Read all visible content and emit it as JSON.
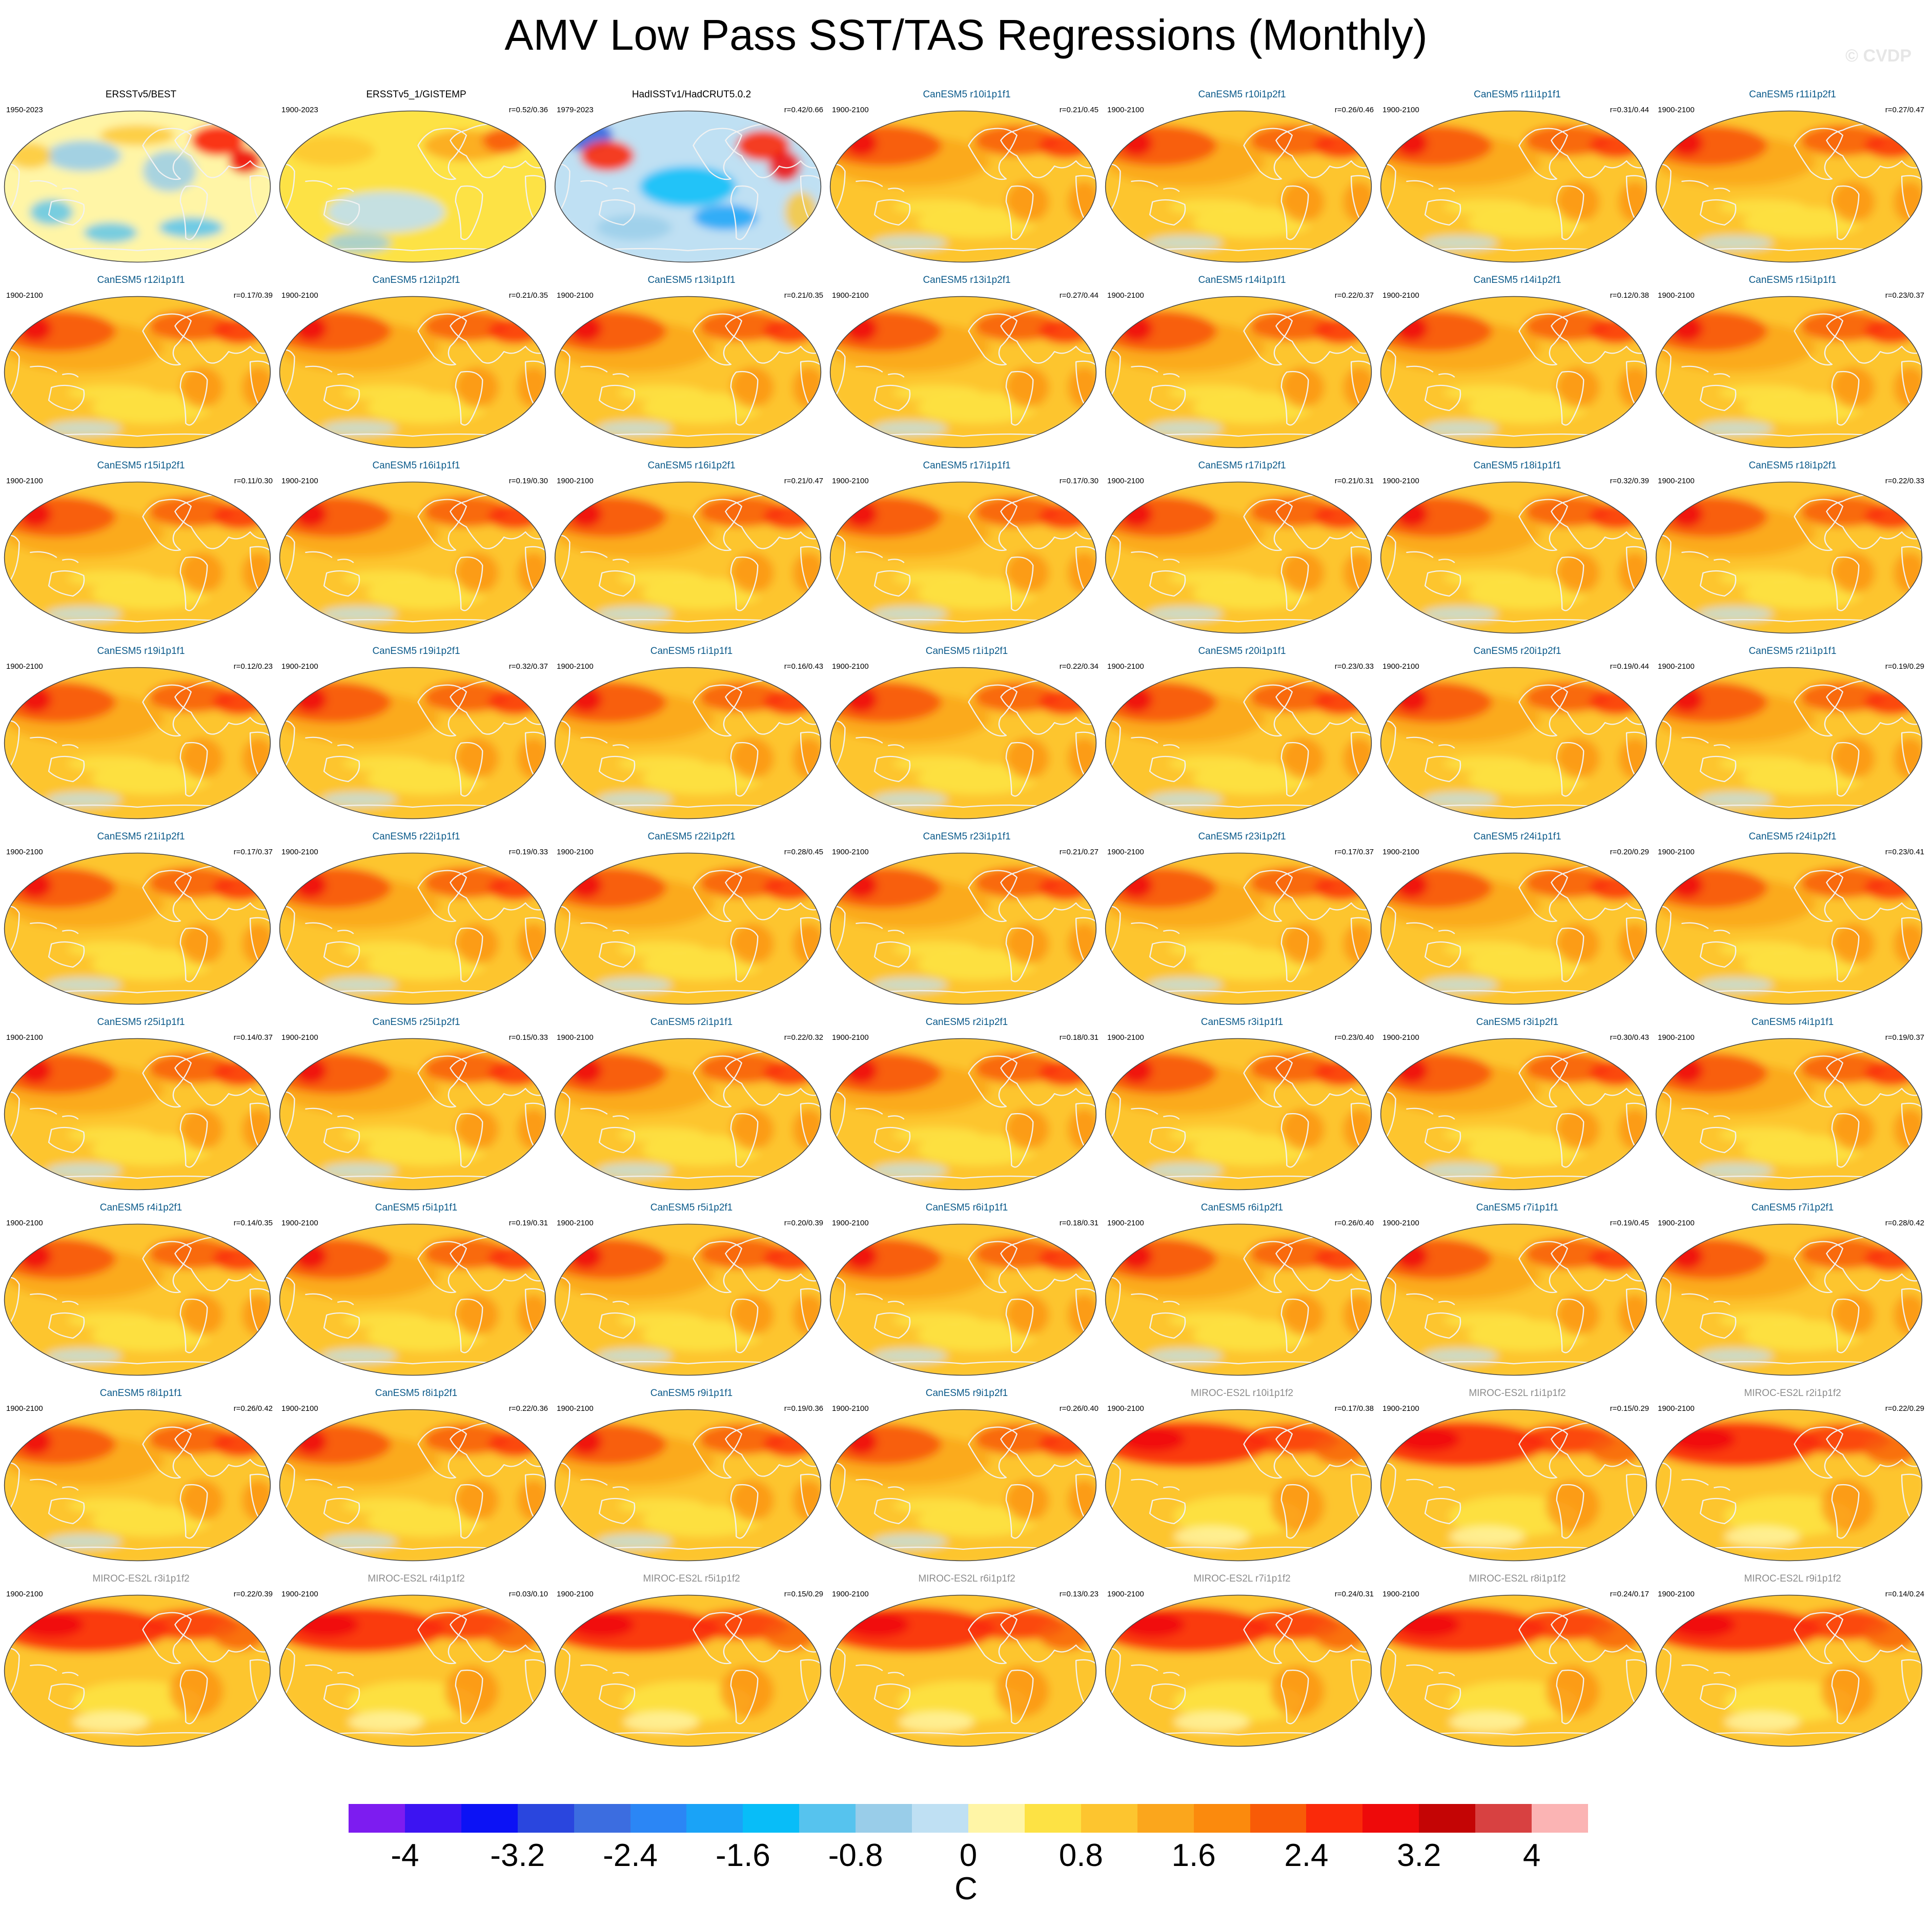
{
  "figure": {
    "title": "AMV Low Pass SST/TAS Regressions (Monthly)",
    "copyright": "© CVDP"
  },
  "colors": {
    "obs_title": "#000000",
    "canesm5_title": "#0b5a8a",
    "miroc_title": "#8c8c8c",
    "coastline": "#f2f2f2",
    "map_border": "#444444"
  },
  "chart_data": {
    "type": "heatmap",
    "title": "AMV Low Pass SST/TAS Regressions (Monthly)",
    "units": "C",
    "colorbar": {
      "levels": [
        -4.4,
        -4,
        -3.6,
        -3.2,
        -2.8,
        -2.4,
        -2,
        -1.6,
        -1.2,
        -0.8,
        -0.4,
        0,
        0.4,
        0.8,
        1.2,
        1.6,
        2,
        2.4,
        2.8,
        3.2,
        3.6,
        4,
        4.4
      ],
      "colors": [
        "#7d1cf0",
        "#3c14f2",
        "#0c12f5",
        "#2a46de",
        "#3c6de0",
        "#2b86f5",
        "#1aa3f7",
        "#08bdf8",
        "#56c3ee",
        "#99cde9",
        "#bfe0f3",
        "#fff5a6",
        "#fde244",
        "#fdc52f",
        "#fba61c",
        "#fb8a0d",
        "#f85b07",
        "#fa2a0a",
        "#ee0a0a",
        "#c40505",
        "#d84141",
        "#fbb4b4"
      ],
      "tick_labels": [
        "-4",
        "-3.2",
        "-2.4",
        "-1.6",
        "-0.8",
        "0",
        "0.8",
        "1.6",
        "2.4",
        "3.2",
        "4"
      ],
      "tick_values": [
        -4,
        -3.2,
        -2.4,
        -1.6,
        -0.8,
        0,
        0.8,
        1.6,
        2.4,
        3.2,
        4
      ]
    },
    "panels": [
      {
        "title": "ERSSTv5/BEST",
        "period": "1950-2023",
        "corr": "",
        "group": "obs",
        "pattern": "obs1"
      },
      {
        "title": "ERSSTv5_1/GISTEMP",
        "period": "1900-2023",
        "corr": "r=0.52/0.36",
        "group": "obs",
        "pattern": "obs2"
      },
      {
        "title": "HadISSTv1/HadCRUT5.0.2",
        "period": "1979-2023",
        "corr": "r=0.42/0.66",
        "group": "obs",
        "pattern": "obs3"
      },
      {
        "title": "CanESM5 r10i1p1f1",
        "period": "1900-2100",
        "corr": "r=0.21/0.45",
        "group": "canesm5",
        "pattern": "can"
      },
      {
        "title": "CanESM5 r10i1p2f1",
        "period": "1900-2100",
        "corr": "r=0.26/0.46",
        "group": "canesm5",
        "pattern": "can"
      },
      {
        "title": "CanESM5 r11i1p1f1",
        "period": "1900-2100",
        "corr": "r=0.31/0.44",
        "group": "canesm5",
        "pattern": "can"
      },
      {
        "title": "CanESM5 r11i1p2f1",
        "period": "1900-2100",
        "corr": "r=0.27/0.47",
        "group": "canesm5",
        "pattern": "can"
      },
      {
        "title": "CanESM5 r12i1p1f1",
        "period": "1900-2100",
        "corr": "r=0.17/0.39",
        "group": "canesm5",
        "pattern": "can"
      },
      {
        "title": "CanESM5 r12i1p2f1",
        "period": "1900-2100",
        "corr": "r=0.21/0.35",
        "group": "canesm5",
        "pattern": "can"
      },
      {
        "title": "CanESM5 r13i1p1f1",
        "period": "1900-2100",
        "corr": "r=0.21/0.35",
        "group": "canesm5",
        "pattern": "can"
      },
      {
        "title": "CanESM5 r13i1p2f1",
        "period": "1900-2100",
        "corr": "r=0.27/0.44",
        "group": "canesm5",
        "pattern": "can"
      },
      {
        "title": "CanESM5 r14i1p1f1",
        "period": "1900-2100",
        "corr": "r=0.22/0.37",
        "group": "canesm5",
        "pattern": "can"
      },
      {
        "title": "CanESM5 r14i1p2f1",
        "period": "1900-2100",
        "corr": "r=0.12/0.38",
        "group": "canesm5",
        "pattern": "can"
      },
      {
        "title": "CanESM5 r15i1p1f1",
        "period": "1900-2100",
        "corr": "r=0.23/0.37",
        "group": "canesm5",
        "pattern": "can"
      },
      {
        "title": "CanESM5 r15i1p2f1",
        "period": "1900-2100",
        "corr": "r=0.11/0.30",
        "group": "canesm5",
        "pattern": "can"
      },
      {
        "title": "CanESM5 r16i1p1f1",
        "period": "1900-2100",
        "corr": "r=0.19/0.30",
        "group": "canesm5",
        "pattern": "can"
      },
      {
        "title": "CanESM5 r16i1p2f1",
        "period": "1900-2100",
        "corr": "r=0.21/0.47",
        "group": "canesm5",
        "pattern": "can"
      },
      {
        "title": "CanESM5 r17i1p1f1",
        "period": "1900-2100",
        "corr": "r=0.17/0.30",
        "group": "canesm5",
        "pattern": "can"
      },
      {
        "title": "CanESM5 r17i1p2f1",
        "period": "1900-2100",
        "corr": "r=0.21/0.31",
        "group": "canesm5",
        "pattern": "can"
      },
      {
        "title": "CanESM5 r18i1p1f1",
        "period": "1900-2100",
        "corr": "r=0.32/0.39",
        "group": "canesm5",
        "pattern": "can"
      },
      {
        "title": "CanESM5 r18i1p2f1",
        "period": "1900-2100",
        "corr": "r=0.22/0.33",
        "group": "canesm5",
        "pattern": "can"
      },
      {
        "title": "CanESM5 r19i1p1f1",
        "period": "1900-2100",
        "corr": "r=0.12/0.23",
        "group": "canesm5",
        "pattern": "can"
      },
      {
        "title": "CanESM5 r19i1p2f1",
        "period": "1900-2100",
        "corr": "r=0.32/0.37",
        "group": "canesm5",
        "pattern": "can"
      },
      {
        "title": "CanESM5 r1i1p1f1",
        "period": "1900-2100",
        "corr": "r=0.16/0.43",
        "group": "canesm5",
        "pattern": "can"
      },
      {
        "title": "CanESM5 r1i1p2f1",
        "period": "1900-2100",
        "corr": "r=0.22/0.34",
        "group": "canesm5",
        "pattern": "can"
      },
      {
        "title": "CanESM5 r20i1p1f1",
        "period": "1900-2100",
        "corr": "r=0.23/0.33",
        "group": "canesm5",
        "pattern": "can"
      },
      {
        "title": "CanESM5 r20i1p2f1",
        "period": "1900-2100",
        "corr": "r=0.19/0.44",
        "group": "canesm5",
        "pattern": "can"
      },
      {
        "title": "CanESM5 r21i1p1f1",
        "period": "1900-2100",
        "corr": "r=0.19/0.29",
        "group": "canesm5",
        "pattern": "can"
      },
      {
        "title": "CanESM5 r21i1p2f1",
        "period": "1900-2100",
        "corr": "r=0.17/0.37",
        "group": "canesm5",
        "pattern": "can"
      },
      {
        "title": "CanESM5 r22i1p1f1",
        "period": "1900-2100",
        "corr": "r=0.19/0.33",
        "group": "canesm5",
        "pattern": "can"
      },
      {
        "title": "CanESM5 r22i1p2f1",
        "period": "1900-2100",
        "corr": "r=0.28/0.45",
        "group": "canesm5",
        "pattern": "can"
      },
      {
        "title": "CanESM5 r23i1p1f1",
        "period": "1900-2100",
        "corr": "r=0.21/0.27",
        "group": "canesm5",
        "pattern": "can"
      },
      {
        "title": "CanESM5 r23i1p2f1",
        "period": "1900-2100",
        "corr": "r=0.17/0.37",
        "group": "canesm5",
        "pattern": "can"
      },
      {
        "title": "CanESM5 r24i1p1f1",
        "period": "1900-2100",
        "corr": "r=0.20/0.29",
        "group": "canesm5",
        "pattern": "can"
      },
      {
        "title": "CanESM5 r24i1p2f1",
        "period": "1900-2100",
        "corr": "r=0.23/0.41",
        "group": "canesm5",
        "pattern": "can"
      },
      {
        "title": "CanESM5 r25i1p1f1",
        "period": "1900-2100",
        "corr": "r=0.14/0.37",
        "group": "canesm5",
        "pattern": "can"
      },
      {
        "title": "CanESM5 r25i1p2f1",
        "period": "1900-2100",
        "corr": "r=0.15/0.33",
        "group": "canesm5",
        "pattern": "can"
      },
      {
        "title": "CanESM5 r2i1p1f1",
        "period": "1900-2100",
        "corr": "r=0.22/0.32",
        "group": "canesm5",
        "pattern": "can"
      },
      {
        "title": "CanESM5 r2i1p2f1",
        "period": "1900-2100",
        "corr": "r=0.18/0.31",
        "group": "canesm5",
        "pattern": "can"
      },
      {
        "title": "CanESM5 r3i1p1f1",
        "period": "1900-2100",
        "corr": "r=0.23/0.40",
        "group": "canesm5",
        "pattern": "can"
      },
      {
        "title": "CanESM5 r3i1p2f1",
        "period": "1900-2100",
        "corr": "r=0.30/0.43",
        "group": "canesm5",
        "pattern": "can"
      },
      {
        "title": "CanESM5 r4i1p1f1",
        "period": "1900-2100",
        "corr": "r=0.19/0.37",
        "group": "canesm5",
        "pattern": "can"
      },
      {
        "title": "CanESM5 r4i1p2f1",
        "period": "1900-2100",
        "corr": "r=0.14/0.35",
        "group": "canesm5",
        "pattern": "can"
      },
      {
        "title": "CanESM5 r5i1p1f1",
        "period": "1900-2100",
        "corr": "r=0.19/0.31",
        "group": "canesm5",
        "pattern": "can"
      },
      {
        "title": "CanESM5 r5i1p2f1",
        "period": "1900-2100",
        "corr": "r=0.20/0.39",
        "group": "canesm5",
        "pattern": "can"
      },
      {
        "title": "CanESM5 r6i1p1f1",
        "period": "1900-2100",
        "corr": "r=0.18/0.31",
        "group": "canesm5",
        "pattern": "can"
      },
      {
        "title": "CanESM5 r6i1p2f1",
        "period": "1900-2100",
        "corr": "r=0.26/0.40",
        "group": "canesm5",
        "pattern": "can"
      },
      {
        "title": "CanESM5 r7i1p1f1",
        "period": "1900-2100",
        "corr": "r=0.19/0.45",
        "group": "canesm5",
        "pattern": "can"
      },
      {
        "title": "CanESM5 r7i1p2f1",
        "period": "1900-2100",
        "corr": "r=0.28/0.42",
        "group": "canesm5",
        "pattern": "can"
      },
      {
        "title": "CanESM5 r8i1p1f1",
        "period": "1900-2100",
        "corr": "r=0.26/0.42",
        "group": "canesm5",
        "pattern": "can"
      },
      {
        "title": "CanESM5 r8i1p2f1",
        "period": "1900-2100",
        "corr": "r=0.22/0.36",
        "group": "canesm5",
        "pattern": "can"
      },
      {
        "title": "CanESM5 r9i1p1f1",
        "period": "1900-2100",
        "corr": "r=0.19/0.36",
        "group": "canesm5",
        "pattern": "can"
      },
      {
        "title": "CanESM5 r9i1p2f1",
        "period": "1900-2100",
        "corr": "r=0.26/0.40",
        "group": "canesm5",
        "pattern": "can"
      },
      {
        "title": "MIROC-ES2L r10i1p1f2",
        "period": "1900-2100",
        "corr": "r=0.17/0.38",
        "group": "miroc",
        "pattern": "miroc"
      },
      {
        "title": "MIROC-ES2L r1i1p1f2",
        "period": "1900-2100",
        "corr": "r=0.15/0.29",
        "group": "miroc",
        "pattern": "miroc"
      },
      {
        "title": "MIROC-ES2L r2i1p1f2",
        "period": "1900-2100",
        "corr": "r=0.22/0.29",
        "group": "miroc",
        "pattern": "miroc"
      },
      {
        "title": "MIROC-ES2L r3i1p1f2",
        "period": "1900-2100",
        "corr": "r=0.22/0.39",
        "group": "miroc",
        "pattern": "miroc"
      },
      {
        "title": "MIROC-ES2L r4i1p1f2",
        "period": "1900-2100",
        "corr": "r=0.03/0.10",
        "group": "miroc",
        "pattern": "miroc"
      },
      {
        "title": "MIROC-ES2L r5i1p1f2",
        "period": "1900-2100",
        "corr": "r=0.15/0.29",
        "group": "miroc",
        "pattern": "miroc"
      },
      {
        "title": "MIROC-ES2L r6i1p1f2",
        "period": "1900-2100",
        "corr": "r=0.13/0.23",
        "group": "miroc",
        "pattern": "miroc"
      },
      {
        "title": "MIROC-ES2L r7i1p1f2",
        "period": "1900-2100",
        "corr": "r=0.24/0.31",
        "group": "miroc",
        "pattern": "miroc"
      },
      {
        "title": "MIROC-ES2L r8i1p1f2",
        "period": "1900-2100",
        "corr": "r=0.24/0.17",
        "group": "miroc",
        "pattern": "miroc"
      },
      {
        "title": "MIROC-ES2L r9i1p1f2",
        "period": "1900-2100",
        "corr": "r=0.14/0.24",
        "group": "miroc",
        "pattern": "miroc"
      }
    ]
  }
}
